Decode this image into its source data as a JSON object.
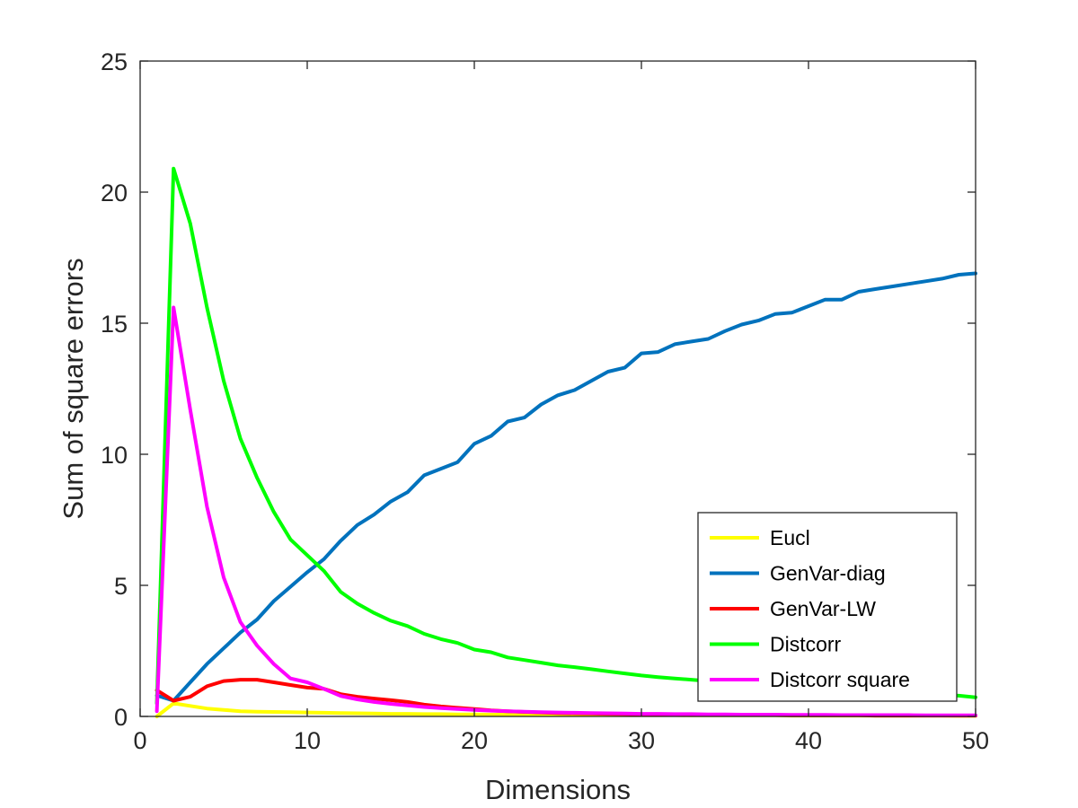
{
  "chart_data": {
    "type": "line",
    "title": "",
    "xlabel": "Dimensions",
    "ylabel": "Sum of square errors",
    "xlim": [
      0,
      50
    ],
    "ylim": [
      0,
      25
    ],
    "xticks": [
      0,
      10,
      20,
      30,
      40,
      50
    ],
    "yticks": [
      0,
      5,
      10,
      15,
      20,
      25
    ],
    "x_tick_labels": [
      "0",
      "10",
      "20",
      "30",
      "40",
      "50"
    ],
    "y_tick_labels": [
      "0",
      "5",
      "10",
      "15",
      "20",
      "25"
    ],
    "grid": false,
    "legend_position": "bottom-right",
    "x": [
      1,
      2,
      3,
      4,
      5,
      6,
      7,
      8,
      9,
      10,
      11,
      12,
      13,
      14,
      15,
      16,
      17,
      18,
      19,
      20,
      21,
      22,
      23,
      24,
      25,
      26,
      27,
      28,
      29,
      30,
      31,
      32,
      33,
      34,
      35,
      36,
      37,
      38,
      39,
      40,
      41,
      42,
      43,
      44,
      45,
      46,
      47,
      48,
      49,
      50
    ],
    "series": [
      {
        "name": "Eucl",
        "color": "#FFFF00",
        "values": [
          0.0,
          0.5,
          0.4,
          0.3,
          0.25,
          0.2,
          0.18,
          0.17,
          0.16,
          0.15,
          0.14,
          0.13,
          0.12,
          0.11,
          0.1,
          0.1,
          0.09,
          0.09,
          0.08,
          0.08,
          0.07,
          0.07,
          0.07,
          0.06,
          0.06,
          0.06,
          0.06,
          0.05,
          0.05,
          0.05,
          0.05,
          0.05,
          0.04,
          0.04,
          0.04,
          0.04,
          0.04,
          0.04,
          0.03,
          0.03,
          0.03,
          0.03,
          0.03,
          0.03,
          0.03,
          0.03,
          0.03,
          0.03,
          0.02,
          0.02
        ]
      },
      {
        "name": "GenVar-diag",
        "color": "#0072BD",
        "values": [
          0.8,
          0.6,
          1.3,
          2.0,
          2.6,
          3.2,
          3.7,
          4.4,
          4.95,
          5.5,
          6.0,
          6.7,
          7.3,
          7.7,
          8.2,
          8.55,
          9.2,
          9.45,
          9.7,
          10.4,
          10.7,
          11.25,
          11.4,
          11.9,
          12.25,
          12.45,
          12.8,
          13.15,
          13.3,
          13.85,
          13.9,
          14.2,
          14.3,
          14.4,
          14.7,
          14.95,
          15.1,
          15.35,
          15.4,
          15.65,
          15.9,
          15.9,
          16.2,
          16.3,
          16.4,
          16.5,
          16.6,
          16.7,
          16.85,
          16.9
        ]
      },
      {
        "name": "GenVar-LW",
        "color": "#FF0000",
        "values": [
          1.0,
          0.6,
          0.75,
          1.15,
          1.35,
          1.4,
          1.4,
          1.3,
          1.2,
          1.1,
          1.05,
          0.85,
          0.75,
          0.68,
          0.62,
          0.55,
          0.45,
          0.38,
          0.33,
          0.28,
          0.23,
          0.2,
          0.17,
          0.15,
          0.13,
          0.12,
          0.11,
          0.1,
          0.09,
          0.08,
          0.08,
          0.07,
          0.07,
          0.06,
          0.06,
          0.05,
          0.05,
          0.05,
          0.04,
          0.04,
          0.04,
          0.04,
          0.04,
          0.03,
          0.03,
          0.03,
          0.03,
          0.03,
          0.03,
          0.03
        ]
      },
      {
        "name": "Distcorr",
        "color": "#00FF00",
        "values": [
          0.5,
          20.9,
          18.8,
          15.6,
          12.8,
          10.6,
          9.1,
          7.8,
          6.75,
          6.15,
          5.55,
          4.75,
          4.3,
          3.95,
          3.65,
          3.45,
          3.15,
          2.95,
          2.8,
          2.55,
          2.45,
          2.25,
          2.15,
          2.05,
          1.95,
          1.88,
          1.8,
          1.72,
          1.64,
          1.56,
          1.5,
          1.45,
          1.4,
          1.35,
          1.3,
          1.25,
          1.2,
          1.16,
          1.12,
          1.08,
          1.04,
          1.0,
          0.97,
          0.94,
          0.91,
          0.88,
          0.85,
          0.82,
          0.79,
          0.73
        ]
      },
      {
        "name": "Distcorr square",
        "color": "#FF00FF",
        "values": [
          0.2,
          15.6,
          11.7,
          8.0,
          5.3,
          3.6,
          2.7,
          2.0,
          1.45,
          1.3,
          1.05,
          0.78,
          0.65,
          0.55,
          0.48,
          0.42,
          0.36,
          0.32,
          0.28,
          0.25,
          0.22,
          0.2,
          0.18,
          0.16,
          0.15,
          0.14,
          0.13,
          0.12,
          0.11,
          0.1,
          0.1,
          0.09,
          0.09,
          0.08,
          0.08,
          0.07,
          0.07,
          0.07,
          0.06,
          0.06,
          0.06,
          0.05,
          0.05,
          0.05,
          0.05,
          0.05,
          0.04,
          0.04,
          0.04,
          0.04
        ]
      }
    ]
  }
}
